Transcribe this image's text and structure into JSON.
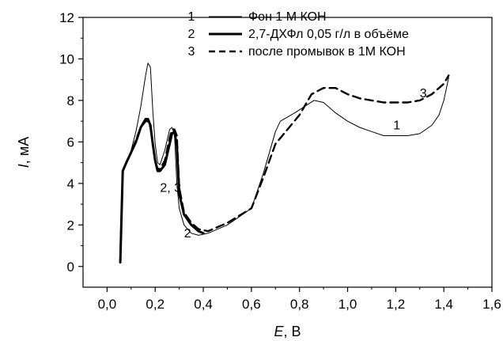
{
  "chart_data": {
    "type": "line",
    "title": "",
    "xlabel_var": "E",
    "xlabel_unit": ", В",
    "ylabel_var": "I",
    "ylabel_unit": ", мА",
    "xlim": [
      -0.1,
      1.6
    ],
    "ylim": [
      -1,
      12
    ],
    "x_ticks": [
      0.0,
      0.2,
      0.4,
      0.6,
      0.8,
      1.0,
      1.2,
      1.4,
      1.6
    ],
    "x_tick_labels": [
      "0,0",
      "0,2",
      "0,4",
      "0,6",
      "0,8",
      "1,0",
      "1,2",
      "1,4",
      "1,6"
    ],
    "y_ticks": [
      0,
      2,
      4,
      6,
      8,
      10,
      12
    ],
    "y_tick_labels": [
      "0",
      "2",
      "4",
      "6",
      "8",
      "10",
      "12"
    ],
    "grid": false,
    "legend_position": "top-right",
    "series": [
      {
        "id": "1",
        "name": "Фон 1 М КОН",
        "style": "thin",
        "x": [
          0.055,
          0.065,
          0.08,
          0.1,
          0.12,
          0.14,
          0.16,
          0.17,
          0.18,
          0.19,
          0.2,
          0.21,
          0.22,
          0.24,
          0.26,
          0.27,
          0.28,
          0.29,
          0.3,
          0.32,
          0.35,
          0.38,
          0.42,
          0.5,
          0.6,
          0.65,
          0.7,
          0.72,
          0.75,
          0.78,
          0.82,
          0.86,
          0.9,
          0.95,
          1.0,
          1.05,
          1.1,
          1.15,
          1.2,
          1.25,
          1.3,
          1.35,
          1.38,
          1.4,
          1.42
        ],
        "y": [
          0.3,
          4.5,
          5.0,
          5.6,
          6.5,
          7.7,
          9.2,
          9.8,
          9.6,
          7.5,
          5.9,
          5.0,
          4.9,
          5.6,
          6.6,
          6.7,
          6.4,
          4.0,
          2.8,
          2.0,
          1.6,
          1.5,
          1.6,
          2.0,
          2.8,
          4.5,
          6.5,
          7.0,
          7.2,
          7.4,
          7.7,
          8.0,
          7.9,
          7.4,
          7.0,
          6.7,
          6.5,
          6.3,
          6.3,
          6.3,
          6.4,
          6.8,
          7.3,
          8.0,
          9.1
        ]
      },
      {
        "id": "2",
        "name": "2,7-ДХФл 0,05 г/л в объёме",
        "style": "thick",
        "x": [
          0.055,
          0.065,
          0.08,
          0.1,
          0.12,
          0.14,
          0.16,
          0.17,
          0.18,
          0.19,
          0.2,
          0.21,
          0.22,
          0.24,
          0.26,
          0.27,
          0.28,
          0.29,
          0.3,
          0.32,
          0.35,
          0.38,
          0.4
        ],
        "y": [
          0.2,
          4.6,
          5.0,
          5.5,
          6.0,
          6.7,
          7.1,
          7.1,
          6.8,
          5.9,
          5.1,
          4.6,
          4.6,
          4.9,
          5.9,
          6.4,
          6.5,
          5.8,
          3.5,
          2.5,
          2.0,
          1.7,
          1.6
        ]
      },
      {
        "id": "3",
        "name": "после промывок в 1М КОН",
        "style": "dashed",
        "x": [
          0.055,
          0.065,
          0.08,
          0.1,
          0.12,
          0.14,
          0.16,
          0.17,
          0.18,
          0.19,
          0.2,
          0.21,
          0.22,
          0.24,
          0.26,
          0.27,
          0.28,
          0.29,
          0.3,
          0.32,
          0.35,
          0.38,
          0.42,
          0.5,
          0.6,
          0.65,
          0.7,
          0.75,
          0.8,
          0.85,
          0.9,
          0.95,
          1.0,
          1.05,
          1.1,
          1.15,
          1.2,
          1.25,
          1.3,
          1.35,
          1.38,
          1.4,
          1.42
        ],
        "y": [
          0.3,
          4.6,
          5.0,
          5.5,
          6.1,
          6.7,
          7.0,
          7.0,
          6.7,
          5.9,
          5.1,
          4.7,
          4.7,
          5.1,
          6.2,
          6.6,
          6.6,
          6.3,
          3.8,
          2.6,
          2.1,
          1.8,
          1.7,
          2.1,
          2.8,
          4.3,
          5.9,
          6.6,
          7.3,
          8.3,
          8.6,
          8.6,
          8.3,
          8.1,
          8.0,
          7.9,
          7.9,
          7.9,
          8.0,
          8.3,
          8.6,
          8.8,
          9.2
        ]
      }
    ],
    "annotations": [
      {
        "text": "1",
        "x": 1.19,
        "y": 6.6
      },
      {
        "text": "2, 3",
        "x": 0.22,
        "y": 3.6
      },
      {
        "text": "2",
        "x": 0.32,
        "y": 1.4
      },
      {
        "text": "3",
        "x": 1.3,
        "y": 8.15
      }
    ]
  }
}
